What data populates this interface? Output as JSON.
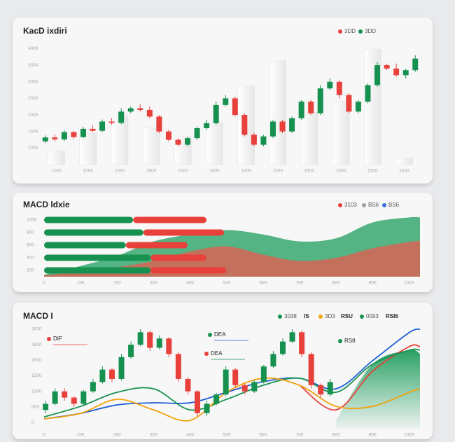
{
  "chart_data": [
    {
      "type": "candlestick",
      "title": "KacD ixdiri",
      "legend": [
        {
          "name": "3DD",
          "color": "#e8403a"
        },
        {
          "name": "3DD",
          "color": "#17914f"
        }
      ],
      "ylim": [
        500,
        4200
      ],
      "yticks": [
        1000,
        1500,
        2000,
        2500,
        3000,
        3500,
        4000
      ],
      "categories": [
        "1000",
        "1000",
        "1000",
        "1500",
        "1500",
        "1500",
        "1500",
        "1500",
        "1500",
        "1500",
        "1500",
        "1500"
      ],
      "columns": [
        920,
        1450,
        1980,
        1620,
        1345,
        1770,
        2870,
        3630,
        2090,
        2400,
        3990,
        700
      ],
      "up_color": "#17914f",
      "down_color": "#e8403a",
      "candles": [
        {
          "open": 1200,
          "close": 1320,
          "high": 1380,
          "low": 1150
        },
        {
          "open": 1320,
          "close": 1260,
          "high": 1400,
          "low": 1200
        },
        {
          "open": 1260,
          "close": 1480,
          "high": 1540,
          "low": 1220
        },
        {
          "open": 1480,
          "close": 1330,
          "high": 1520,
          "low": 1280
        },
        {
          "open": 1330,
          "close": 1580,
          "high": 1640,
          "low": 1300
        },
        {
          "open": 1580,
          "close": 1520,
          "high": 1680,
          "low": 1480
        },
        {
          "open": 1520,
          "close": 1800,
          "high": 1860,
          "low": 1480
        },
        {
          "open": 1800,
          "close": 1760,
          "high": 1900,
          "low": 1700
        },
        {
          "open": 1760,
          "close": 2100,
          "high": 2200,
          "low": 1720
        },
        {
          "open": 2100,
          "close": 2200,
          "high": 2260,
          "low": 2050
        },
        {
          "open": 2200,
          "close": 2150,
          "high": 2320,
          "low": 2100
        },
        {
          "open": 2150,
          "close": 1950,
          "high": 2250,
          "low": 1900
        },
        {
          "open": 1950,
          "close": 1500,
          "high": 2000,
          "low": 1450
        },
        {
          "open": 1500,
          "close": 1250,
          "high": 1550,
          "low": 1200
        },
        {
          "open": 1250,
          "close": 1100,
          "high": 1300,
          "low": 1050
        },
        {
          "open": 1100,
          "close": 1300,
          "high": 1350,
          "low": 1050
        },
        {
          "open": 1300,
          "close": 1600,
          "high": 1650,
          "low": 1250
        },
        {
          "open": 1600,
          "close": 1750,
          "high": 1850,
          "low": 1550
        },
        {
          "open": 1750,
          "close": 2300,
          "high": 2400,
          "low": 1700
        },
        {
          "open": 2300,
          "close": 2500,
          "high": 2600,
          "low": 2250
        },
        {
          "open": 2500,
          "close": 2000,
          "high": 2550,
          "low": 1950
        },
        {
          "open": 2000,
          "close": 1400,
          "high": 2050,
          "low": 1350
        },
        {
          "open": 1400,
          "close": 1100,
          "high": 1450,
          "low": 1050
        },
        {
          "open": 1100,
          "close": 1350,
          "high": 1400,
          "low": 1050
        },
        {
          "open": 1350,
          "close": 1800,
          "high": 1850,
          "low": 1300
        },
        {
          "open": 1800,
          "close": 1500,
          "high": 1850,
          "low": 1450
        },
        {
          "open": 1500,
          "close": 1900,
          "high": 1950,
          "low": 1450
        },
        {
          "open": 1900,
          "close": 2400,
          "high": 2450,
          "low": 1850
        },
        {
          "open": 2400,
          "close": 2050,
          "high": 2450,
          "low": 2000
        },
        {
          "open": 2050,
          "close": 2800,
          "high": 2900,
          "low": 2000
        },
        {
          "open": 2800,
          "close": 3000,
          "high": 3100,
          "low": 2750
        },
        {
          "open": 3000,
          "close": 2600,
          "high": 3050,
          "low": 2500
        },
        {
          "open": 2600,
          "close": 2100,
          "high": 2650,
          "low": 2050
        },
        {
          "open": 2100,
          "close": 2400,
          "high": 2450,
          "low": 2050
        },
        {
          "open": 2400,
          "close": 2900,
          "high": 2950,
          "low": 2350
        },
        {
          "open": 2900,
          "close": 3500,
          "high": 3600,
          "low": 2850
        },
        {
          "open": 3500,
          "close": 3400,
          "high": 3550,
          "low": 3350
        },
        {
          "open": 3400,
          "close": 3200,
          "high": 3550,
          "low": 3150
        },
        {
          "open": 3200,
          "close": 3350,
          "high": 3400,
          "low": 3100
        },
        {
          "open": 3350,
          "close": 3700,
          "high": 3800,
          "low": 3300
        }
      ]
    },
    {
      "type": "bar",
      "title": "MACD ldxie",
      "legend": [
        {
          "name": "3103",
          "color": "#e8403a"
        },
        {
          "name": "BS6",
          "color": "#9e9e9e"
        },
        {
          "name": "BS6",
          "color": "#3b6fd8"
        }
      ],
      "categories": [
        "1000",
        "800",
        "600",
        "400",
        "200"
      ],
      "series": [
        {
          "color": "#17914f",
          "values": [
            244,
            272,
            224,
            292,
            292
          ]
        },
        {
          "color": "#e8403a",
          "values": [
            201,
            221,
            169,
            153,
            207
          ]
        }
      ],
      "xlim": [
        0,
        1030
      ],
      "xticks": [
        0,
        100,
        200,
        300,
        400,
        500,
        600,
        700,
        800,
        900,
        1000
      ],
      "ylim": [
        0,
        100
      ],
      "x": [
        0,
        100,
        200,
        300,
        400,
        500,
        600,
        700,
        800,
        900,
        1000,
        1030
      ],
      "areas": [
        {
          "color": "#1f9d5c",
          "values": [
            3,
            17,
            33,
            56,
            67,
            74,
            67,
            56,
            61,
            86,
            94,
            94
          ]
        },
        {
          "color": "#e8594f",
          "values": [
            2,
            8,
            15,
            25,
            40,
            48,
            35,
            25,
            30,
            45,
            55,
            57
          ]
        }
      ]
    },
    {
      "type": "candlestick",
      "title": "MACD I",
      "legend": [
        {
          "name": "3038",
          "text": "IS",
          "color": "#17914f"
        },
        {
          "name": "3D3",
          "text": "RSU",
          "color": "#f2a20c"
        },
        {
          "name": "0093",
          "text": "RSI6",
          "color": "#17914f"
        }
      ],
      "ylim": [
        -200,
        3200
      ],
      "yticks": [
        0,
        500,
        1000,
        1500,
        2000,
        2500,
        3000
      ],
      "xlim": [
        0,
        1030
      ],
      "xticks": [
        0,
        100,
        200,
        300,
        400,
        500,
        600,
        700,
        800,
        900,
        1000
      ],
      "up_color": "#17914f",
      "down_color": "#e8403a",
      "candles": [
        {
          "x": 4,
          "open": 400,
          "close": 600,
          "high": 700,
          "low": 300
        },
        {
          "x": 30,
          "open": 600,
          "close": 1000,
          "high": 1100,
          "low": 550
        },
        {
          "x": 56,
          "open": 1000,
          "close": 800,
          "high": 1100,
          "low": 700
        },
        {
          "x": 82,
          "open": 800,
          "close": 600,
          "high": 850,
          "low": 500
        },
        {
          "x": 108,
          "open": 600,
          "close": 1000,
          "high": 1050,
          "low": 550
        },
        {
          "x": 134,
          "open": 1000,
          "close": 1300,
          "high": 1400,
          "low": 950
        },
        {
          "x": 160,
          "open": 1300,
          "close": 1700,
          "high": 1800,
          "low": 1250
        },
        {
          "x": 186,
          "open": 1700,
          "close": 1400,
          "high": 1750,
          "low": 1300
        },
        {
          "x": 212,
          "open": 1400,
          "close": 2100,
          "high": 2200,
          "low": 1350
        },
        {
          "x": 238,
          "open": 2100,
          "close": 2500,
          "high": 2600,
          "low": 2050
        },
        {
          "x": 264,
          "open": 2500,
          "close": 2900,
          "high": 3000,
          "low": 2450
        },
        {
          "x": 290,
          "open": 2900,
          "close": 2400,
          "high": 2950,
          "low": 2300
        },
        {
          "x": 316,
          "open": 2400,
          "close": 2700,
          "high": 2800,
          "low": 2350
        },
        {
          "x": 342,
          "open": 2700,
          "close": 2200,
          "high": 2750,
          "low": 2100
        },
        {
          "x": 368,
          "open": 2200,
          "close": 1400,
          "high": 2250,
          "low": 1300
        },
        {
          "x": 394,
          "open": 1400,
          "close": 1000,
          "high": 1450,
          "low": 900
        },
        {
          "x": 420,
          "open": 1000,
          "close": 300,
          "high": 1050,
          "low": 200
        },
        {
          "x": 446,
          "open": 300,
          "close": 600,
          "high": 700,
          "low": 200
        },
        {
          "x": 472,
          "open": 600,
          "close": 900,
          "high": 950,
          "low": 550
        },
        {
          "x": 498,
          "open": 900,
          "close": 1700,
          "high": 1800,
          "low": 850
        },
        {
          "x": 524,
          "open": 1700,
          "close": 1200,
          "high": 1750,
          "low": 1100
        },
        {
          "x": 550,
          "open": 1200,
          "close": 1000,
          "high": 1250,
          "low": 900
        },
        {
          "x": 576,
          "open": 1000,
          "close": 1300,
          "high": 1350,
          "low": 950
        },
        {
          "x": 602,
          "open": 1300,
          "close": 1800,
          "high": 1850,
          "low": 1250
        },
        {
          "x": 628,
          "open": 1800,
          "close": 2200,
          "high": 2300,
          "low": 1750
        },
        {
          "x": 654,
          "open": 2200,
          "close": 2600,
          "high": 2700,
          "low": 2150
        },
        {
          "x": 680,
          "open": 2600,
          "close": 2900,
          "high": 3000,
          "low": 2550
        },
        {
          "x": 706,
          "open": 2900,
          "close": 2200,
          "high": 2950,
          "low": 2100
        },
        {
          "x": 732,
          "open": 2200,
          "close": 1200,
          "high": 2250,
          "low": 1100
        },
        {
          "x": 758,
          "open": 1200,
          "close": 900,
          "high": 1250,
          "low": 800
        },
        {
          "x": 784,
          "open": 900,
          "close": 1300,
          "high": 1400,
          "low": 850
        }
      ],
      "x": [
        0,
        100,
        200,
        300,
        400,
        500,
        600,
        700,
        800,
        900,
        1000,
        1030
      ],
      "series": [
        {
          "name": "DIF",
          "color": "#e8403a",
          "values": [
            null,
            null,
            null,
            null,
            null,
            null,
            null,
            1195,
            406,
            1647,
            2436,
            2436
          ]
        },
        {
          "name": "DEA",
          "color": "#1f5fd6",
          "values": [
            113,
            293,
            564,
            632,
            632,
            970,
            1308,
            1421,
            1083,
            1985,
            2887,
            3000
          ]
        },
        {
          "name": "DEA",
          "color": "#17914f",
          "values": [
            180,
            519,
            970,
            1083,
            406,
            744,
            1195,
            1421,
            970,
            1872,
            2323,
            2323
          ]
        },
        {
          "color": "#f2a20c",
          "values": [
            113,
            293,
            744,
            406,
            68,
            970,
            1421,
            1195,
            519,
            519,
            970,
            1083
          ]
        }
      ],
      "areas": [
        {
          "name": "RS8",
          "color": "#1f9d5c",
          "values": [
            null,
            null,
            null,
            null,
            null,
            null,
            null,
            null,
            68,
            1872,
            2323,
            2211
          ]
        }
      ]
    }
  ]
}
